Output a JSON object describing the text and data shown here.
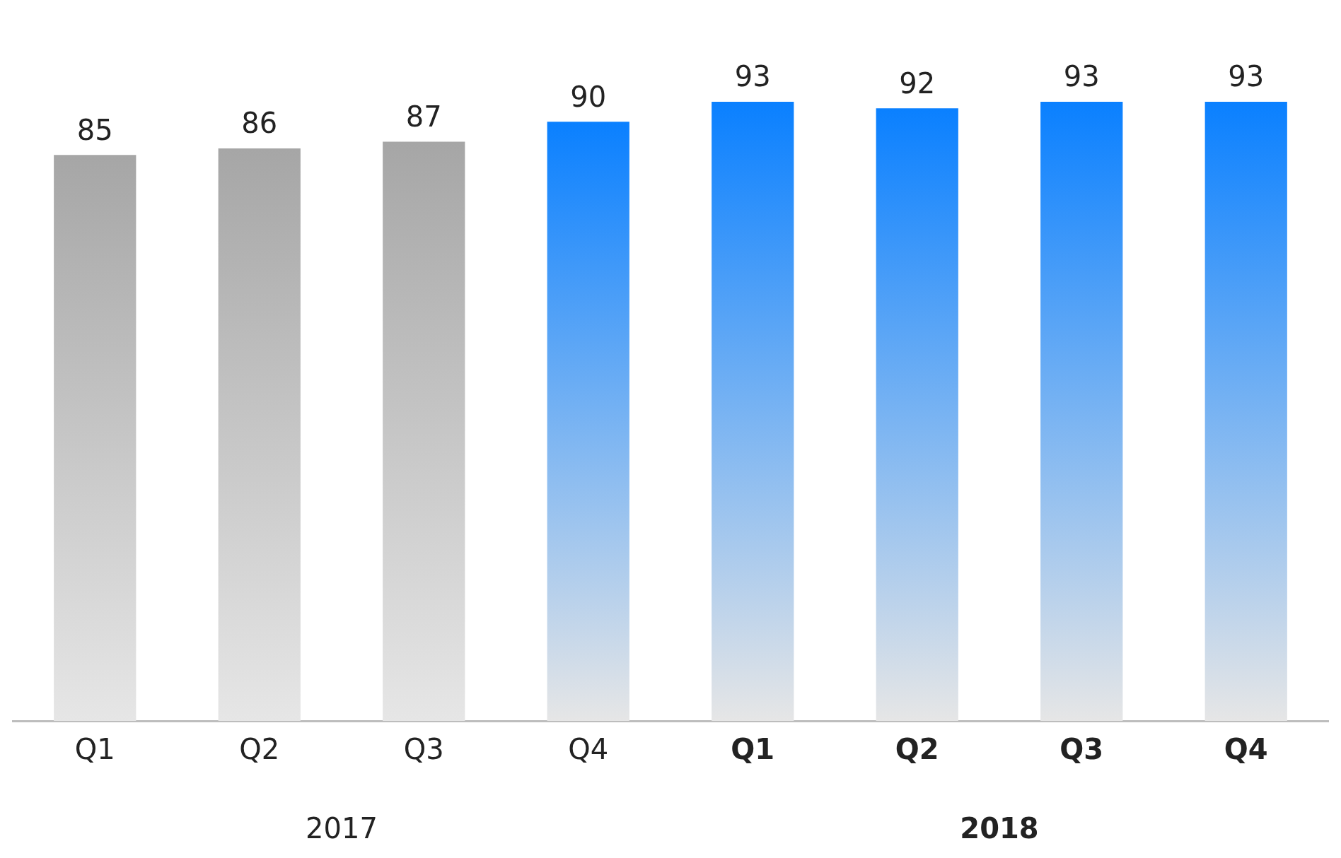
{
  "chart_data": {
    "type": "bar",
    "categories": [
      "Q1",
      "Q2",
      "Q3",
      "Q4",
      "Q1",
      "Q2",
      "Q3",
      "Q4"
    ],
    "values": [
      85,
      86,
      87,
      90,
      93,
      92,
      93,
      93
    ],
    "colors": [
      "#a6a6a6",
      "#a6a6a6",
      "#a6a6a6",
      "#0a80ff",
      "#0a80ff",
      "#0a80ff",
      "#0a80ff",
      "#0a80ff"
    ],
    "tick_labels": "x",
    "grid": false,
    "legend": false,
    "data_labels": true,
    "annotations": [
      "2017",
      "2018"
    ]
  }
}
